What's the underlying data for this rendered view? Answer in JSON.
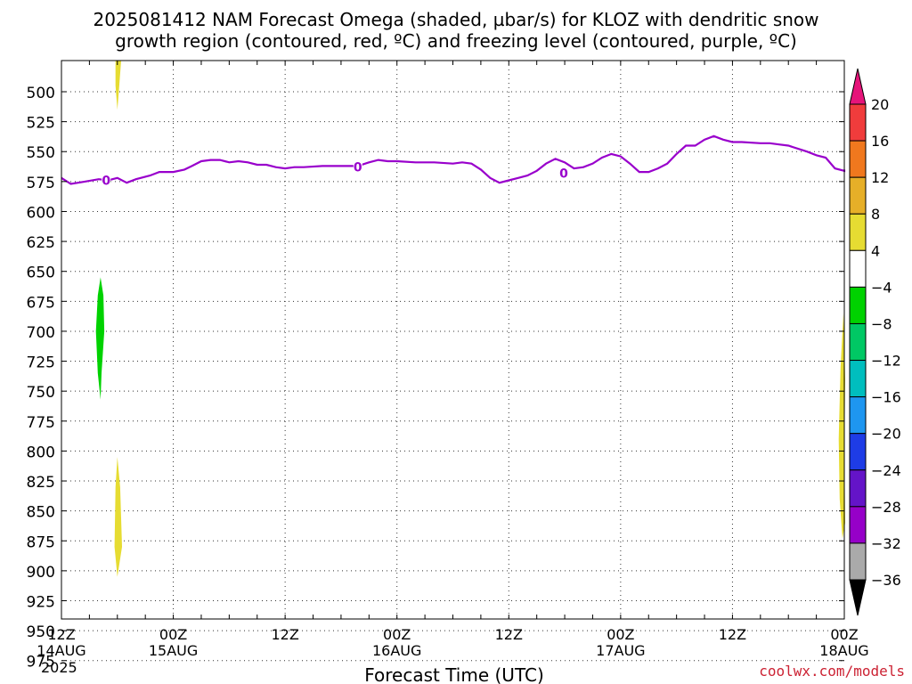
{
  "chart_data": {
    "type": "heatmap",
    "title_line1": "2025081412 NAM Forecast Omega (shaded, µbar/s) for KLOZ with dendritic snow",
    "title_line2": "growth region (contoured, red, ºC) and freezing level (contoured, purple, ºC)",
    "xlabel": "Forecast Time (UTC)",
    "credit": "coolwx.com/models",
    "x_range_hours": [
      0,
      84
    ],
    "y_range_hPa": [
      475,
      985
    ],
    "y_ticks": [
      500,
      525,
      550,
      575,
      600,
      625,
      650,
      675,
      700,
      725,
      750,
      775,
      800,
      825,
      850,
      875,
      900,
      925,
      950,
      975
    ],
    "x_ticks": [
      {
        "hour": 0,
        "label": "12Z",
        "sub": "14AUG",
        "sub2": "2025"
      },
      {
        "hour": 12,
        "label": "00Z",
        "sub": "15AUG",
        "sub2": ""
      },
      {
        "hour": 24,
        "label": "12Z",
        "sub": "",
        "sub2": ""
      },
      {
        "hour": 36,
        "label": "00Z",
        "sub": "16AUG",
        "sub2": ""
      },
      {
        "hour": 48,
        "label": "12Z",
        "sub": "",
        "sub2": ""
      },
      {
        "hour": 60,
        "label": "00Z",
        "sub": "17AUG",
        "sub2": ""
      },
      {
        "hour": 72,
        "label": "12Z",
        "sub": "",
        "sub2": ""
      },
      {
        "hour": 84,
        "label": "00Z",
        "sub": "18AUG",
        "sub2": ""
      }
    ],
    "freezing_level": {
      "label": "0",
      "color": "#9900cc",
      "label_points": [
        [
          4.8,
          574
        ],
        [
          31.8,
          563
        ],
        [
          53.9,
          568
        ]
      ],
      "points": [
        [
          0,
          572
        ],
        [
          1,
          577
        ],
        [
          2.5,
          575
        ],
        [
          4,
          573
        ],
        [
          5,
          574
        ],
        [
          6,
          572
        ],
        [
          7,
          576
        ],
        [
          8,
          573
        ],
        [
          9.5,
          570
        ],
        [
          10.5,
          567
        ],
        [
          12,
          567
        ],
        [
          13.2,
          565
        ],
        [
          14,
          562
        ],
        [
          15,
          558
        ],
        [
          16,
          557
        ],
        [
          17,
          557
        ],
        [
          18,
          559
        ],
        [
          19,
          558
        ],
        [
          20,
          559
        ],
        [
          21,
          561
        ],
        [
          22,
          561
        ],
        [
          23,
          563
        ],
        [
          24,
          564
        ],
        [
          25,
          563
        ],
        [
          26,
          563
        ],
        [
          28,
          562
        ],
        [
          30,
          562
        ],
        [
          31.8,
          562
        ],
        [
          33,
          559
        ],
        [
          34,
          557
        ],
        [
          35,
          558
        ],
        [
          36,
          558
        ],
        [
          38,
          559
        ],
        [
          40,
          559
        ],
        [
          42,
          560
        ],
        [
          43,
          559
        ],
        [
          44,
          560
        ],
        [
          45,
          565
        ],
        [
          46,
          572
        ],
        [
          47,
          576
        ],
        [
          48,
          574
        ],
        [
          49,
          572
        ],
        [
          50,
          570
        ],
        [
          51,
          566
        ],
        [
          52,
          560
        ],
        [
          53,
          556
        ],
        [
          54,
          559
        ],
        [
          55,
          564
        ],
        [
          56,
          563
        ],
        [
          57,
          560
        ],
        [
          58,
          555
        ],
        [
          59,
          552
        ],
        [
          60,
          554
        ],
        [
          61,
          560
        ],
        [
          62,
          567
        ],
        [
          63,
          567
        ],
        [
          64,
          564
        ],
        [
          65,
          560
        ],
        [
          66,
          552
        ],
        [
          67,
          545
        ],
        [
          68,
          545
        ],
        [
          69,
          540
        ],
        [
          70,
          537
        ],
        [
          71,
          540
        ],
        [
          72,
          542
        ],
        [
          73,
          542
        ],
        [
          75,
          543
        ],
        [
          76,
          543
        ],
        [
          77,
          544
        ],
        [
          78,
          545
        ],
        [
          80,
          550
        ],
        [
          81,
          553
        ],
        [
          82,
          555
        ],
        [
          83,
          564
        ],
        [
          84,
          566
        ],
        [
          85,
          566
        ],
        [
          85.6,
          565
        ]
      ]
    },
    "omega_shading": [
      {
        "value": 4,
        "color": "#e6dc32",
        "points": [
          [
            5.8,
            468
          ],
          [
            6.4,
            468
          ],
          [
            6.2,
            495
          ],
          [
            6.0,
            515
          ],
          [
            5.8,
            495
          ]
        ]
      },
      {
        "value": -8,
        "color": "#00d200",
        "points": [
          [
            4.2,
            655
          ],
          [
            4.5,
            670
          ],
          [
            4.6,
            700
          ],
          [
            4.3,
            735
          ],
          [
            4.2,
            757
          ],
          [
            3.9,
            735
          ],
          [
            3.7,
            700
          ],
          [
            3.9,
            670
          ]
        ]
      },
      {
        "value": 4,
        "color": "#e6dc32",
        "points": [
          [
            6.0,
            805
          ],
          [
            6.3,
            830
          ],
          [
            6.5,
            880
          ],
          [
            6.0,
            905
          ],
          [
            5.7,
            880
          ],
          [
            5.8,
            830
          ]
        ]
      },
      {
        "value": 4,
        "color": "#e6dc32",
        "points": [
          [
            83.9,
            685
          ],
          [
            84.1,
            740
          ],
          [
            84.0,
            800
          ],
          [
            84.1,
            860
          ],
          [
            83.8,
            873
          ],
          [
            83.5,
            840
          ],
          [
            83.4,
            790
          ],
          [
            83.6,
            730
          ]
        ]
      }
    ],
    "terrain": {
      "color": "#9b5a32",
      "top_hPa": 973,
      "bottom_hPa": 985
    },
    "colorbar": {
      "levels": [
        20,
        16,
        12,
        8,
        4,
        -4,
        -8,
        -12,
        -16,
        -20,
        -24,
        -28,
        -32,
        -36
      ],
      "colors": [
        "#e6147a",
        "#f03c3c",
        "#f0781e",
        "#e6af28",
        "#e6dc32",
        "#ffffff",
        "#00d200",
        "#00c864",
        "#00bebe",
        "#1e96f0",
        "#1e3ce6",
        "#6414c8",
        "#9600c8",
        "#aaaaaa",
        "#000000"
      ]
    }
  }
}
